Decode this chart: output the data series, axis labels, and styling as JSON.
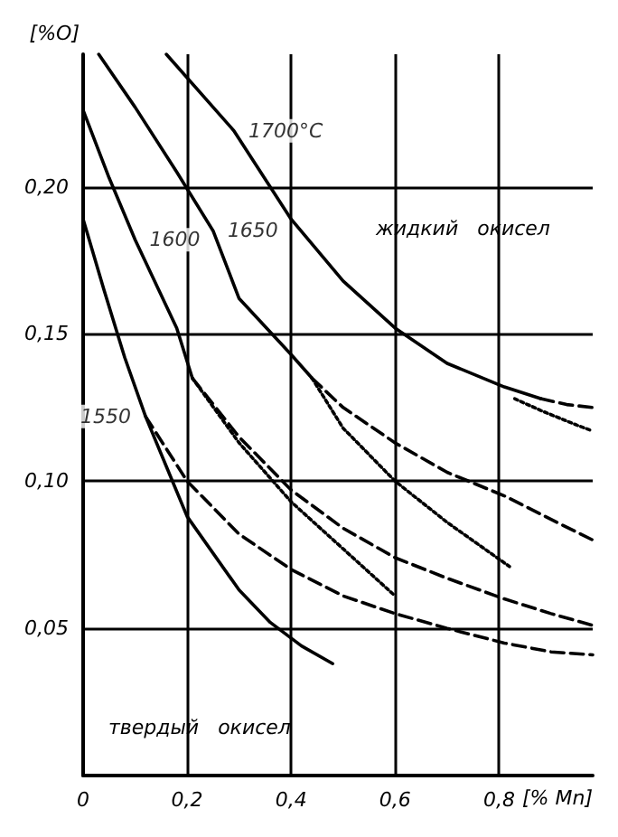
{
  "chart_data": {
    "type": "line",
    "xlabel": "[% Mn]",
    "ylabel": "[%O]",
    "xlim": [
      0,
      0.98
    ],
    "ylim": [
      0,
      0.245
    ],
    "xticks": [
      {
        "value": 0,
        "label": "0"
      },
      {
        "value": 0.2,
        "label": "0,2"
      },
      {
        "value": 0.4,
        "label": "0,4"
      },
      {
        "value": 0.6,
        "label": "0,6"
      },
      {
        "value": 0.8,
        "label": "0,8"
      }
    ],
    "yticks": [
      {
        "value": 0.05,
        "label": "0,05"
      },
      {
        "value": 0.1,
        "label": "0,10"
      },
      {
        "value": 0.15,
        "label": "0,15"
      },
      {
        "value": 0.2,
        "label": "0,20"
      }
    ],
    "grid": true,
    "marker": "none",
    "series": [
      {
        "color": "#000000",
        "line_style": "solid",
        "x": [
          0.16,
          0.29,
          0.4,
          0.5,
          0.6,
          0.7,
          0.81,
          0.88
        ],
        "values": [
          0.245,
          0.219,
          0.189,
          0.168,
          0.152,
          0.14,
          0.132,
          0.128
        ]
      },
      {
        "color": "#000000",
        "line_style": "dashed",
        "x": [
          0.88,
          0.93,
          0.98
        ],
        "values": [
          0.128,
          0.126,
          0.125
        ]
      },
      {
        "color": "#000000",
        "line_style": "dotted",
        "x": [
          0.83,
          0.88,
          0.95,
          0.98
        ],
        "values": [
          0.128,
          0.124,
          0.119,
          0.117
        ]
      },
      {
        "color": "#000000",
        "line_style": "solid",
        "x": [
          0.03,
          0.1,
          0.18,
          0.25,
          0.3,
          0.4,
          0.44
        ],
        "values": [
          0.245,
          0.227,
          0.205,
          0.185,
          0.162,
          0.143,
          0.135
        ]
      },
      {
        "color": "#000000",
        "line_style": "dashed",
        "x": [
          0.44,
          0.5,
          0.6,
          0.7,
          0.81,
          0.9,
          0.98
        ],
        "values": [
          0.135,
          0.125,
          0.113,
          0.103,
          0.095,
          0.087,
          0.08
        ]
      },
      {
        "color": "#000000",
        "line_style": "dotted",
        "x": [
          0.44,
          0.5,
          0.6,
          0.7,
          0.82
        ],
        "values": [
          0.135,
          0.118,
          0.1,
          0.086,
          0.071
        ]
      },
      {
        "color": "#000000",
        "line_style": "solid",
        "x": [
          0,
          0.05,
          0.1,
          0.18,
          0.21
        ],
        "values": [
          0.226,
          0.203,
          0.182,
          0.152,
          0.135
        ]
      },
      {
        "color": "#000000",
        "line_style": "dashed",
        "x": [
          0.21,
          0.3,
          0.4,
          0.5,
          0.6,
          0.7,
          0.81,
          0.9,
          0.98
        ],
        "values": [
          0.135,
          0.115,
          0.097,
          0.084,
          0.074,
          0.067,
          0.06,
          0.055,
          0.051
        ]
      },
      {
        "color": "#000000",
        "line_style": "dotted",
        "x": [
          0.21,
          0.3,
          0.4,
          0.5,
          0.6
        ],
        "values": [
          0.135,
          0.113,
          0.093,
          0.077,
          0.061
        ]
      },
      {
        "color": "#000000",
        "line_style": "solid",
        "x": [
          0,
          0.04,
          0.08,
          0.12,
          0.16,
          0.2,
          0.3,
          0.36,
          0.42,
          0.48
        ],
        "values": [
          0.189,
          0.165,
          0.142,
          0.122,
          0.105,
          0.088,
          0.063,
          0.052,
          0.044,
          0.038
        ]
      },
      {
        "color": "#000000",
        "line_style": "dashed",
        "x": [
          0.12,
          0.2,
          0.3,
          0.4,
          0.5,
          0.6,
          0.7,
          0.81,
          0.9,
          0.98
        ],
        "values": [
          0.122,
          0.1,
          0.082,
          0.07,
          0.061,
          0.055,
          0.05,
          0.045,
          0.042,
          0.041
        ]
      }
    ],
    "annotations": [
      {
        "text": "1700°C",
        "x": 0.29,
        "y": 0.219
      },
      {
        "text": "1650",
        "x": 0.25,
        "y": 0.185
      },
      {
        "text": "1600",
        "x": 0.1,
        "y": 0.182
      },
      {
        "text": "1550",
        "x": 0.12,
        "y": 0.122
      },
      "жидкий   окисел",
      "твердый   окисел"
    ]
  }
}
